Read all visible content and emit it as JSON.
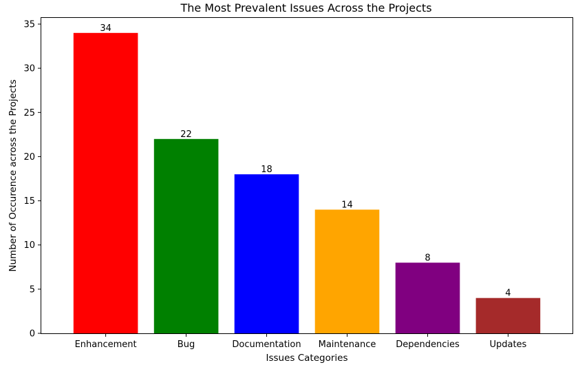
{
  "chart_data": {
    "type": "bar",
    "title": "The Most Prevalent Issues Across the Projects",
    "xlabel": "Issues Categories",
    "ylabel": "Number of Occurence across the Projects",
    "categories": [
      "Enhancement",
      "Bug",
      "Documentation",
      "Maintenance",
      "Dependencies",
      "Updates"
    ],
    "values": [
      34,
      22,
      18,
      14,
      8,
      4
    ],
    "colors": [
      "#ff0000",
      "#008000",
      "#0000ff",
      "#ffa500",
      "#800080",
      "#a52a2a"
    ],
    "yticks": [
      0,
      5,
      10,
      15,
      20,
      25,
      30,
      35
    ],
    "ylim": [
      0,
      35.7
    ],
    "grid": false,
    "data_labels": true
  }
}
